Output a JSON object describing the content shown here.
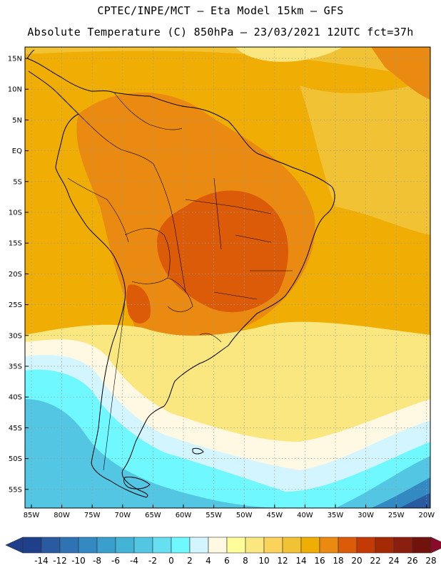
{
  "title": {
    "line1": "CPTEC/INPE/MCT –  Eta Model 15km – GFS",
    "line2": "Absolute Temperature (C) 850hPa – 23/03/2021 12UTC fct=37h"
  },
  "axes": {
    "lat_labels": [
      "15N",
      "10N",
      "5N",
      "EQ",
      "5S",
      "10S",
      "15S",
      "20S",
      "25S",
      "30S",
      "35S",
      "40S",
      "45S",
      "50S",
      "55S"
    ],
    "lon_labels": [
      "85W",
      "80W",
      "75W",
      "70W",
      "65W",
      "60W",
      "55W",
      "50W",
      "45W",
      "40W",
      "35W",
      "30W",
      "25W",
      "20W"
    ]
  },
  "colorbar": {
    "labels": [
      "-14",
      "-12",
      "-10",
      "-8",
      "-6",
      "-4",
      "-2",
      "0",
      "2",
      "4",
      "6",
      "8",
      "10",
      "12",
      "14",
      "16",
      "18",
      "20",
      "22",
      "24",
      "26",
      "28"
    ],
    "colors": [
      "#1f3f8a",
      "#2a5aa0",
      "#2f73b4",
      "#3389c2",
      "#3a9fcc",
      "#43b3d6",
      "#52c6e2",
      "#66dff0",
      "#6ff8ff",
      "#d2f5ff",
      "#fff8e2",
      "#fffc9a",
      "#fbe780",
      "#fad35a",
      "#f2c235",
      "#f0ae05",
      "#ea8a10",
      "#db5b08",
      "#c43a05",
      "#a42a05",
      "#8a1f10",
      "#72120c"
    ]
  },
  "field_colors": {
    "warm_base": "#f0ae05",
    "warmer": "#ea8a10",
    "hot": "#db5b08",
    "mild": "#f2c235",
    "pale": "#fbe780",
    "cream": "#fff8e2",
    "light_cyan": "#d2f5ff",
    "cyan": "#6ff8ff",
    "teal": "#52c6e2",
    "blue": "#3389c2",
    "deep_blue": "#2a5aa0",
    "coast": "#000000",
    "grid": "#9a9a9a"
  }
}
